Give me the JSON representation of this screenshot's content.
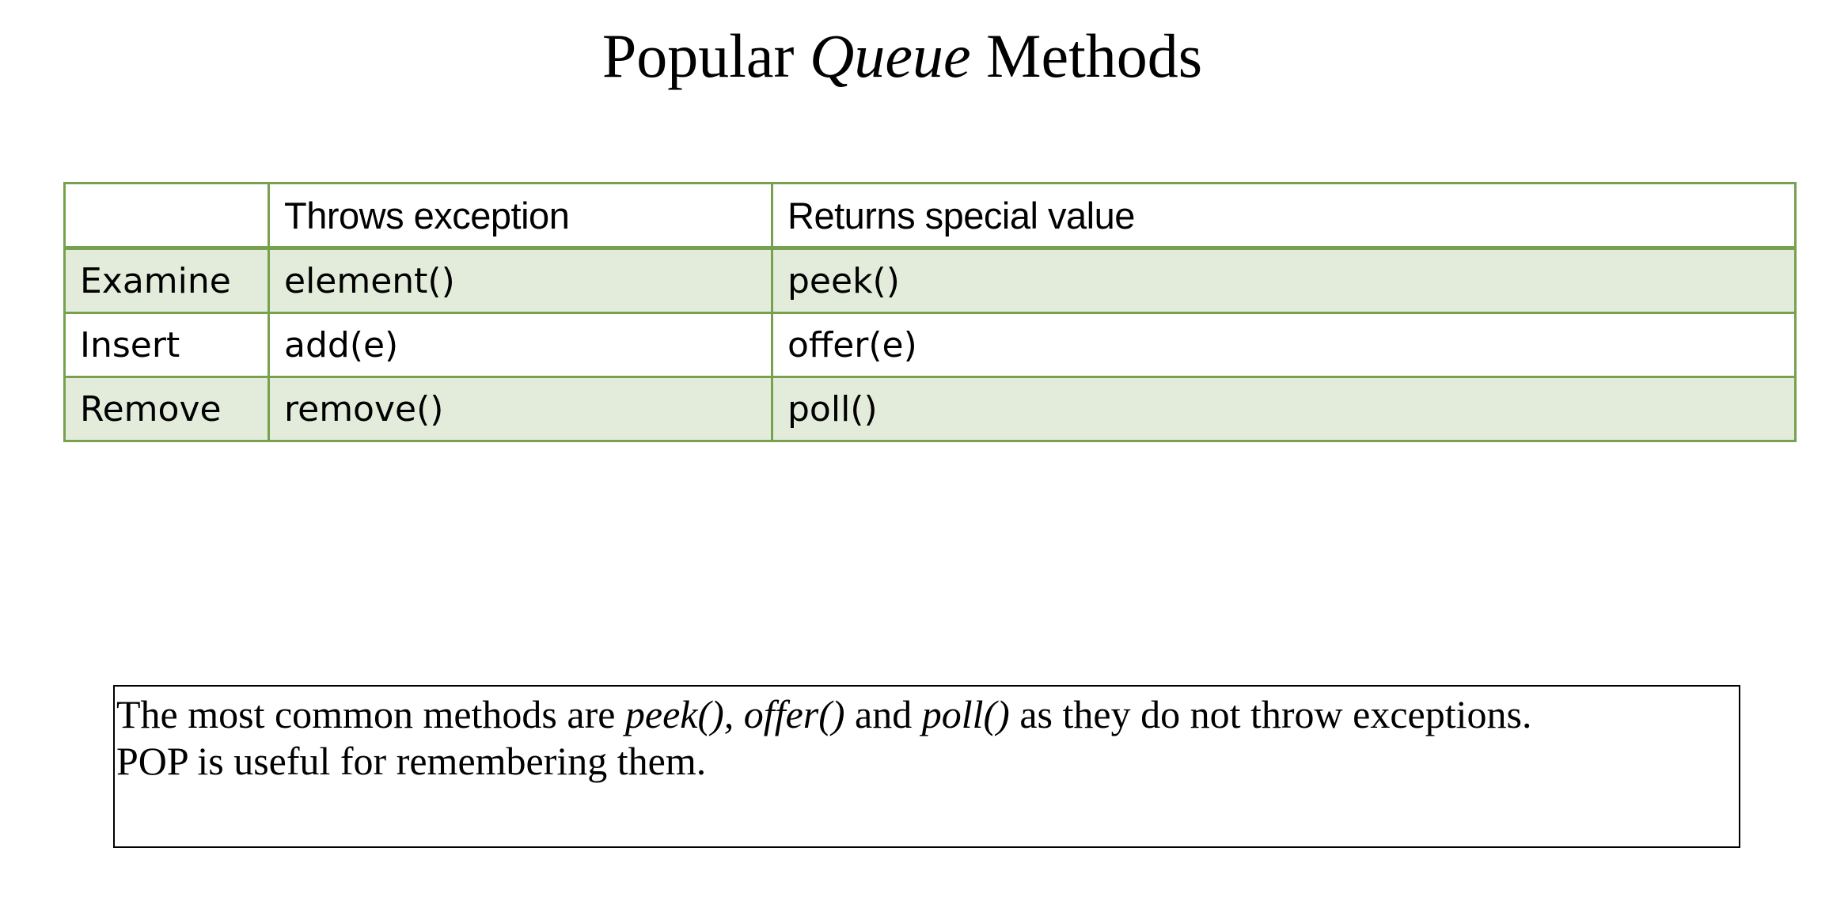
{
  "title": {
    "prefix": "Popular",
    "emphasis": "Queue",
    "suffix": "Methods"
  },
  "table": {
    "headers": [
      "",
      "Throws exception",
      "Returns special value"
    ],
    "rows": [
      {
        "operation": "Examine",
        "throws": "element()",
        "special": "peek()"
      },
      {
        "operation": "Insert",
        "throws": "add(e)",
        "special": "offer(e)"
      },
      {
        "operation": "Remove",
        "throws": "remove()",
        "special": "poll()"
      }
    ]
  },
  "note": {
    "part1": "The most common methods are ",
    "method1": "peek(), offer()",
    "part2": " and ",
    "method2": "poll()",
    "part3": " as they do not throw exceptions.",
    "line2": "POP is useful for remembering them."
  },
  "colors": {
    "table_border": "#77a14f",
    "row_shade": "#e3ecdb",
    "text": "#000000"
  }
}
